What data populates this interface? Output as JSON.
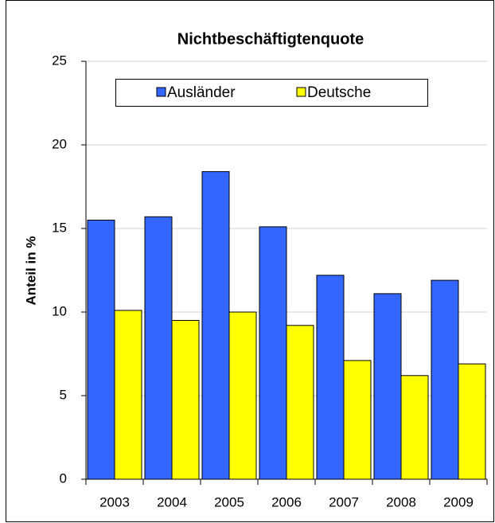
{
  "chart_data": {
    "type": "bar",
    "title": "Nichtbeschäftigtenquote",
    "y_label": "Anteil in %",
    "categories": [
      "2003",
      "2004",
      "2005",
      "2006",
      "2007",
      "2008",
      "2009"
    ],
    "series": [
      {
        "name": "Ausländer",
        "color": "#3366ff",
        "values": [
          15.5,
          15.7,
          18.4,
          15.1,
          12.2,
          11.1,
          11.9
        ]
      },
      {
        "name": "Deutsche",
        "color": "#ffff00",
        "values": [
          10.1,
          9.5,
          10.0,
          9.2,
          7.1,
          6.2,
          6.9
        ]
      }
    ],
    "ylim": [
      0,
      25
    ],
    "yticks": [
      0,
      5,
      10,
      15,
      20,
      25
    ],
    "grid": true,
    "legend": "top"
  }
}
